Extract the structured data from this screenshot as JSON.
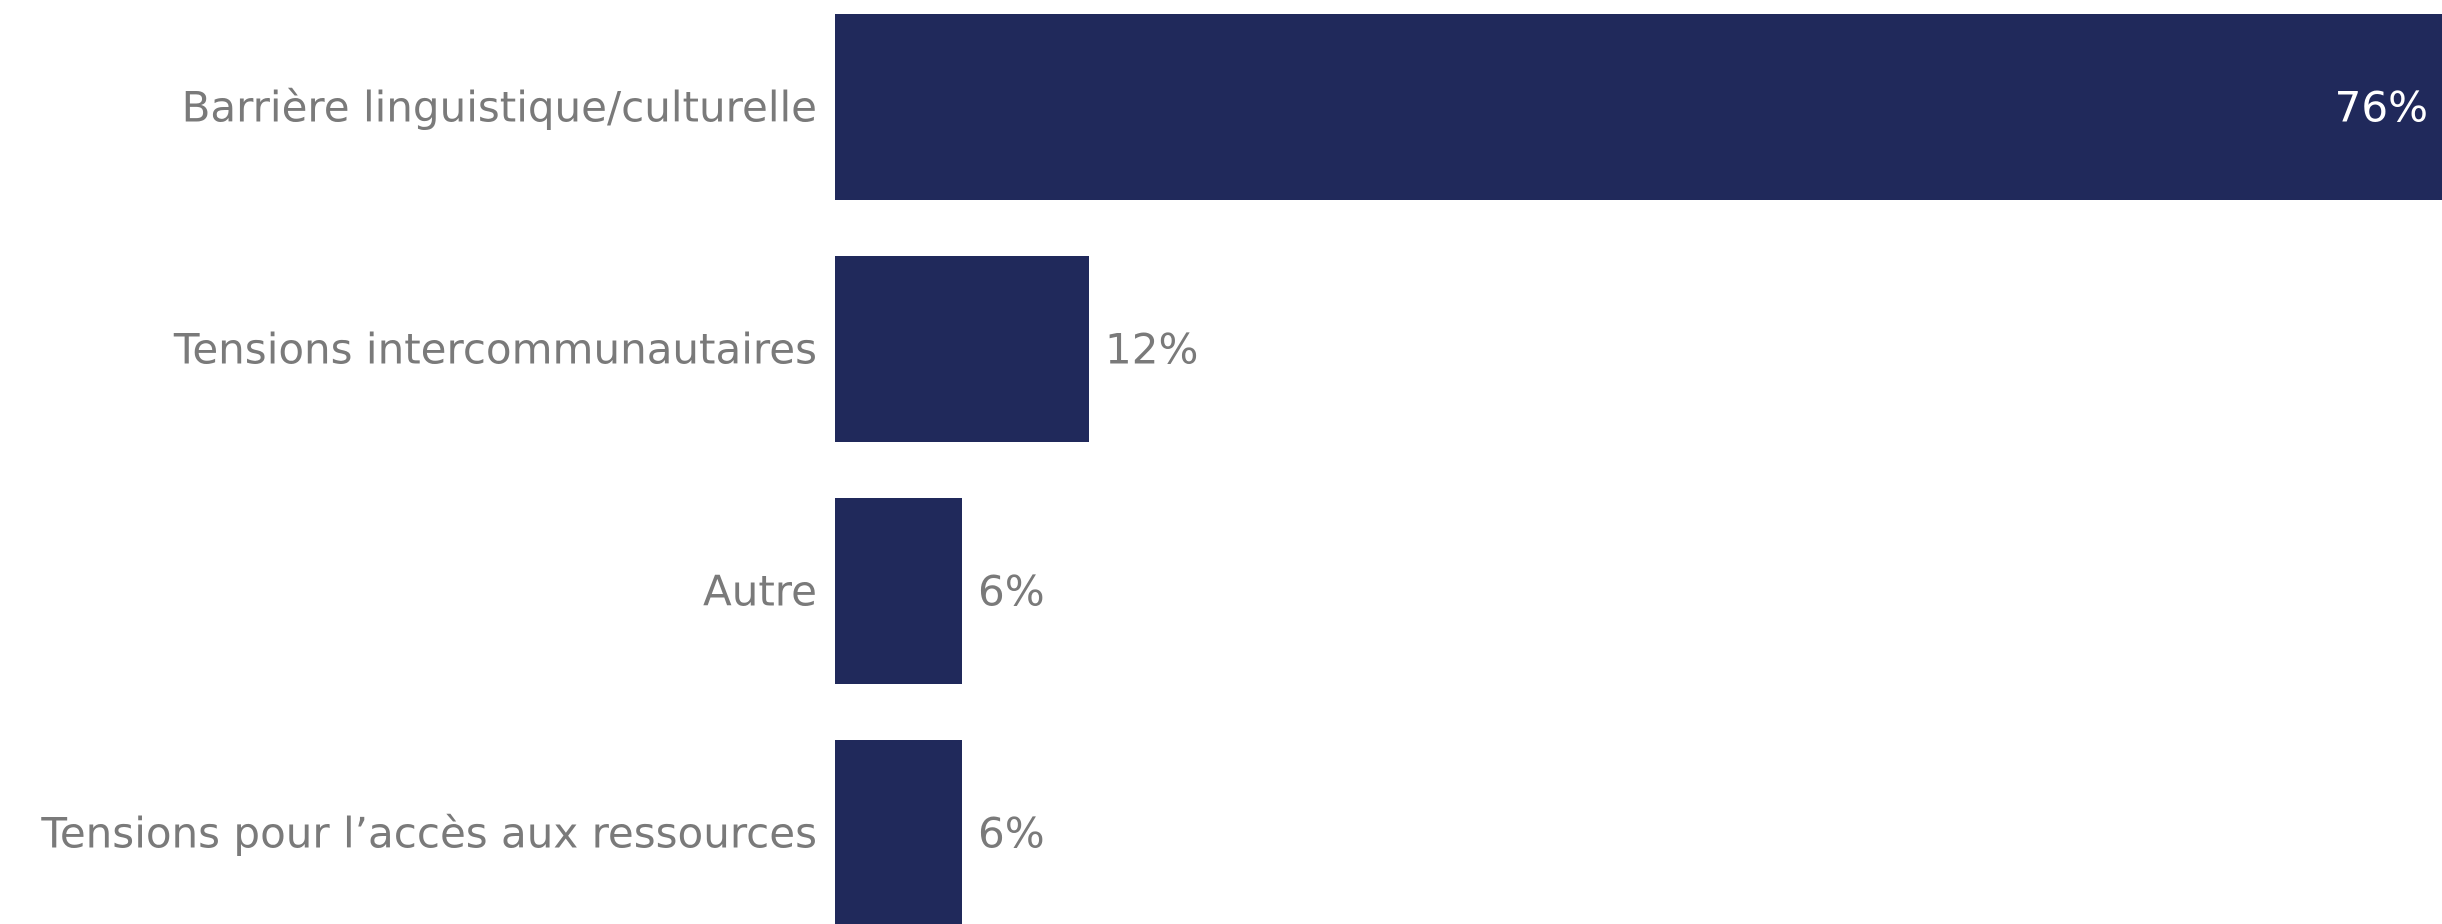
{
  "chart_data": {
    "type": "bar",
    "orientation": "horizontal",
    "categories": [
      "Barrière linguistique/culturelle",
      "Tensions intercommunautaires",
      "Autre",
      "Tensions pour l’accès aux ressources"
    ],
    "values": [
      76,
      12,
      6,
      6
    ],
    "value_labels": [
      "76%",
      "12%",
      "6%",
      "6%"
    ],
    "unit": "%",
    "xlim": [
      0,
      76
    ],
    "grid": false,
    "title": "",
    "xlabel": "",
    "ylabel": "",
    "colors": {
      "bar": "#20295b",
      "category_text": "#7a7a7a",
      "value_text_outside": "#7a7a7a",
      "value_text_inside": "#ffffff"
    }
  }
}
